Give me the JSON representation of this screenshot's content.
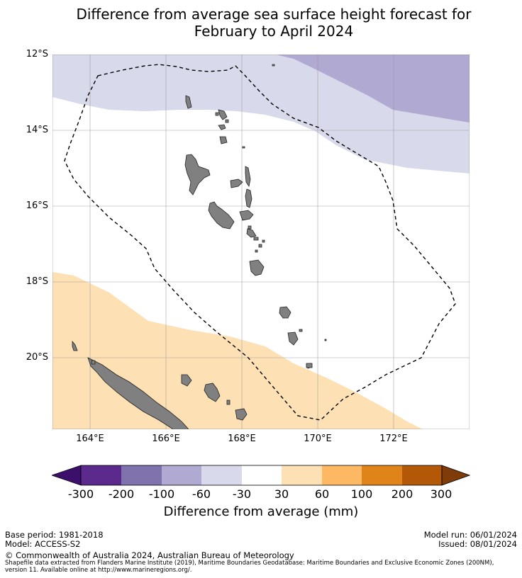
{
  "title_line1": "Difference from average sea surface height forecast for",
  "title_line2": "February to April 2024",
  "map": {
    "lat_labels": [
      "12°S",
      "14°S",
      "16°S",
      "18°S",
      "20°S"
    ],
    "lon_labels": [
      "164°E",
      "166°E",
      "168°E",
      "170°E",
      "172°E"
    ],
    "land_color": "#808080",
    "eez_boundary": "dashed"
  },
  "colorbar": {
    "ticks": [
      "-300",
      "-200",
      "-100",
      "-60",
      "-30",
      "30",
      "60",
      "100",
      "200",
      "300"
    ],
    "colors": [
      "#3b0f6b",
      "#5c2a8c",
      "#7f72ad",
      "#b0a9d2",
      "#d8d9ea",
      "#ffffff",
      "#fde0b4",
      "#fdb863",
      "#e08319",
      "#b35806",
      "#7f3b08"
    ],
    "label": "Difference from average (mm)"
  },
  "footer": {
    "base_period": "Base period: 1981-2018",
    "model": "Model: ACCESS-S2",
    "model_run": "Model run: 06/01/2024",
    "issued": "Issued: 08/01/2024",
    "copyright": "© Commonwealth of Australia 2024, Australian Bureau of Meteorology",
    "shapefile_note": "Shapefile data extracted from Flanders Marine Institute (2019), Maritime Boundaries Geodatabase: Maritime Boundaries and Exclusive Economic Zones (200NM), version 11. Available online at http://www.marineregions.org/."
  }
}
